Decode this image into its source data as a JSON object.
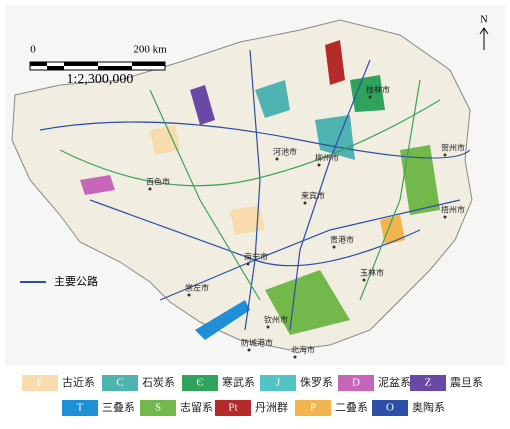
{
  "north": "N",
  "scale": {
    "start": "0",
    "end": "200 km",
    "ratio": "1:2,300,000"
  },
  "road_legend": "主要公路",
  "cities": [
    "桂林市",
    "河池市",
    "柳州市",
    "贺州市",
    "百色市",
    "来宾市",
    "梧州市",
    "贵港市",
    "南宁市",
    "玉林市",
    "崇左市",
    "钦州市",
    "防城港市",
    "北海市"
  ],
  "legend": [
    {
      "code": "E",
      "name": "古近系",
      "color": "#f8dcae"
    },
    {
      "code": "C",
      "name": "石炭系",
      "color": "#4fb3b2"
    },
    {
      "code": "Є",
      "name": "寒武系",
      "color": "#2fa35c"
    },
    {
      "code": "J",
      "name": "侏罗系",
      "color": "#52c4c6"
    },
    {
      "code": "D",
      "name": "泥盆系",
      "color": "#c765b8"
    },
    {
      "code": "Z",
      "name": "震旦系",
      "color": "#6a48a6"
    },
    {
      "code": "T",
      "name": "三叠系",
      "color": "#1f8fd8"
    },
    {
      "code": "S",
      "name": "志留系",
      "color": "#72b84a"
    },
    {
      "code": "Pt",
      "name": "丹洲群",
      "color": "#b52a2a"
    },
    {
      "code": "P",
      "name": "二叠系",
      "color": "#f2b54d"
    },
    {
      "code": "O",
      "name": "奥陶系",
      "color": "#2c4ea6"
    }
  ]
}
